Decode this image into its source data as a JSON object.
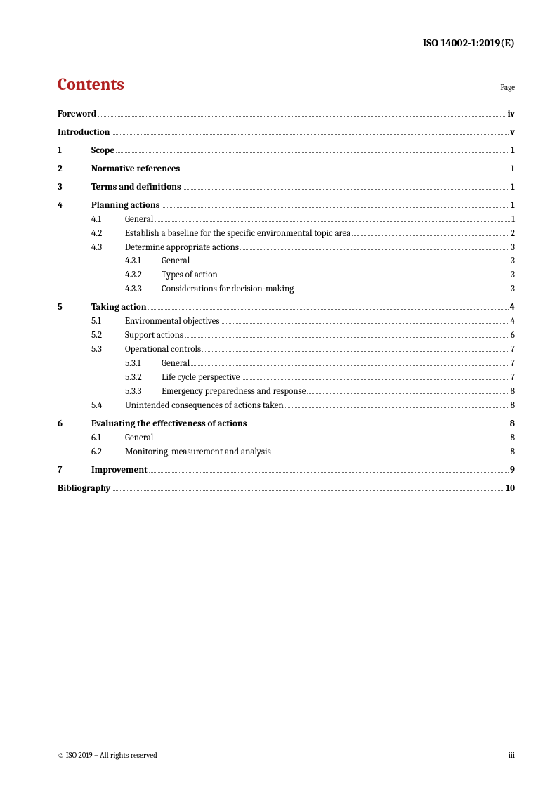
{
  "document_id": "ISO 14002-1:2019(E)",
  "contents_heading": "Contents",
  "page_label": "Page",
  "toc": [
    {
      "level": 0,
      "num": "",
      "title": "Foreword",
      "page": "iv",
      "bold": true,
      "spacer_before": false
    },
    {
      "level": 0,
      "num": "",
      "title": "Introduction",
      "page": "v",
      "bold": true,
      "spacer_before": true
    },
    {
      "level": 1,
      "num": "1",
      "title": "Scope",
      "page": "1",
      "bold": true,
      "spacer_before": true
    },
    {
      "level": 1,
      "num": "2",
      "title": "Normative references",
      "page": "1",
      "bold": true,
      "spacer_before": true
    },
    {
      "level": 1,
      "num": "3",
      "title": "Terms and definitions",
      "page": "1",
      "bold": true,
      "spacer_before": true
    },
    {
      "level": 1,
      "num": "4",
      "title": "Planning actions",
      "page": "1",
      "bold": true,
      "spacer_before": true
    },
    {
      "level": 2,
      "num": "4.1",
      "title": "General",
      "page": "1",
      "bold": false,
      "spacer_before": false
    },
    {
      "level": 2,
      "num": "4.2",
      "title": "Establish a baseline for the specific environmental topic area",
      "page": "2",
      "bold": false,
      "spacer_before": false
    },
    {
      "level": 2,
      "num": "4.3",
      "title": "Determine appropriate actions",
      "page": "3",
      "bold": false,
      "spacer_before": false
    },
    {
      "level": 3,
      "num": "4.3.1",
      "title": "General",
      "page": "3",
      "bold": false,
      "spacer_before": false
    },
    {
      "level": 3,
      "num": "4.3.2",
      "title": "Types of action",
      "page": "3",
      "bold": false,
      "spacer_before": false
    },
    {
      "level": 3,
      "num": "4.3.3",
      "title": "Considerations for decision-making",
      "page": "3",
      "bold": false,
      "spacer_before": false
    },
    {
      "level": 1,
      "num": "5",
      "title": "Taking action",
      "page": "4",
      "bold": true,
      "spacer_before": true
    },
    {
      "level": 2,
      "num": "5.1",
      "title": "Environmental objectives",
      "page": "4",
      "bold": false,
      "spacer_before": false
    },
    {
      "level": 2,
      "num": "5.2",
      "title": "Support actions",
      "page": "6",
      "bold": false,
      "spacer_before": false
    },
    {
      "level": 2,
      "num": "5.3",
      "title": "Operational controls",
      "page": "7",
      "bold": false,
      "spacer_before": false
    },
    {
      "level": 3,
      "num": "5.3.1",
      "title": "General",
      "page": "7",
      "bold": false,
      "spacer_before": false
    },
    {
      "level": 3,
      "num": "5.3.2",
      "title": "Life cycle perspective",
      "page": "7",
      "bold": false,
      "spacer_before": false
    },
    {
      "level": 3,
      "num": "5.3.3",
      "title": "Emergency preparedness and response",
      "page": "8",
      "bold": false,
      "spacer_before": false
    },
    {
      "level": 2,
      "num": "5.4",
      "title": "Unintended consequences of actions taken",
      "page": "8",
      "bold": false,
      "spacer_before": false
    },
    {
      "level": 1,
      "num": "6",
      "title": "Evaluating the effectiveness of actions",
      "page": "8",
      "bold": true,
      "spacer_before": true
    },
    {
      "level": 2,
      "num": "6.1",
      "title": "General",
      "page": "8",
      "bold": false,
      "spacer_before": false
    },
    {
      "level": 2,
      "num": "6.2",
      "title": "Monitoring, measurement and analysis",
      "page": "8",
      "bold": false,
      "spacer_before": false
    },
    {
      "level": 1,
      "num": "7",
      "title": "Improvement",
      "page": "9",
      "bold": true,
      "spacer_before": true
    },
    {
      "level": 0,
      "num": "",
      "title": "Bibliography",
      "page": "10",
      "bold": true,
      "spacer_before": true
    }
  ],
  "footer_left": "© ISO 2019 – All rights reserved",
  "footer_right": "iii",
  "colors": {
    "heading": "#b02020",
    "text": "#000000",
    "background": "#ffffff",
    "dots": "#666666"
  },
  "typography": {
    "heading_fontsize": 24,
    "body_fontsize": 13,
    "header_id_fontsize": 15,
    "footer_fontsize": 11
  }
}
